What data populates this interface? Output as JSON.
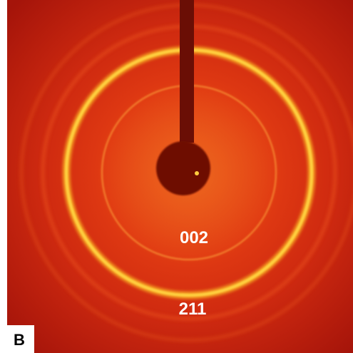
{
  "panel_label": "B",
  "ring_labels": [
    "002",
    "211"
  ]
}
